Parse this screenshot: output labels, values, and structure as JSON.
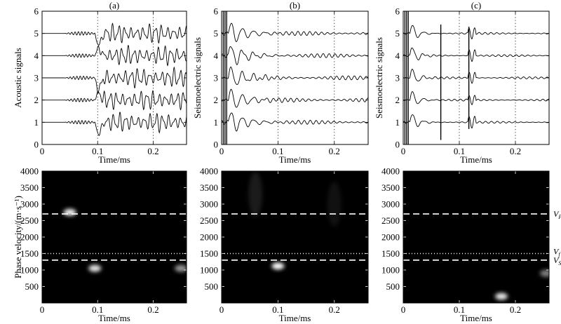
{
  "chart_data": [
    {
      "type": "line",
      "panel": "(a)",
      "ylabel": "Acoustic signals",
      "xlabel": "Time/ms",
      "xlim": [
        0,
        0.26
      ],
      "ylim": [
        0,
        6
      ],
      "xticks": [
        0,
        0.1,
        0.2
      ],
      "yticks": [
        0,
        1,
        2,
        3,
        4,
        5,
        6
      ],
      "dotted_verticals": [
        0.1,
        0.2
      ],
      "trace_baselines": [
        1,
        2,
        3,
        4,
        5
      ],
      "trace_style": "weak arrival near 0.05 ms, strong oscillations from 0.1 ms to 0.25 ms"
    },
    {
      "type": "line",
      "panel": "(b)",
      "ylabel": "Seismoelectric signals",
      "xlabel": "Time/ms",
      "xlim": [
        0,
        0.26
      ],
      "ylim": [
        0,
        6
      ],
      "xticks": [
        0,
        0.1,
        0.2
      ],
      "yticks": [
        0,
        1,
        2,
        3,
        4,
        5,
        6
      ],
      "dotted_verticals": [
        0.1,
        0.2
      ],
      "trace_baselines": [
        1,
        2,
        3,
        4,
        5
      ],
      "trace_style": "large early transient near 0.01 to 0.03 ms, decaying oscillations afterwards"
    },
    {
      "type": "line",
      "panel": "(c)",
      "ylabel": "Seismoelectric signals",
      "xlabel": "Time/ms",
      "xlim": [
        0,
        0.26
      ],
      "ylim": [
        0,
        6
      ],
      "xticks": [
        0,
        0.1,
        0.2
      ],
      "yticks": [
        0,
        1,
        2,
        3,
        4,
        5,
        6
      ],
      "dotted_verticals": [
        0.1,
        0.2
      ],
      "trace_baselines": [
        1,
        2,
        3,
        4,
        5
      ],
      "marker_lines": [
        {
          "x": 0.067,
          "y_range": [
            0.2,
            5.4
          ]
        },
        {
          "x": 0.117,
          "y_range": [
            0.7,
            5.3
          ]
        }
      ],
      "trace_style": "large early transient near 0.01 to 0.03 ms, small oscillations afterwards"
    },
    {
      "type": "heatmap",
      "ylabel": "Phase velocity/(m·s⁻¹)",
      "xlabel": "Time/ms",
      "xlim": [
        0,
        0.26
      ],
      "ylim": [
        0,
        4000
      ],
      "xticks": [
        0,
        0.1,
        0.2
      ],
      "yticks": [
        500,
        1000,
        1500,
        2000,
        2500,
        3000,
        3500,
        4000
      ],
      "reference_lines": [
        {
          "velocity": 2700,
          "style": "dashed"
        },
        {
          "velocity": 1500,
          "style": "dotted"
        },
        {
          "velocity": 1300,
          "style": "dashed"
        }
      ],
      "hotspots": [
        {
          "t": 0.05,
          "v": 2750,
          "intensity": 0.95
        },
        {
          "t": 0.095,
          "v": 1050,
          "intensity": 0.9
        },
        {
          "t": 0.25,
          "v": 1050,
          "intensity": 0.6
        }
      ]
    },
    {
      "type": "heatmap",
      "ylabel": "",
      "xlabel": "Time/ms",
      "xlim": [
        0,
        0.26
      ],
      "ylim": [
        0,
        4000
      ],
      "xticks": [
        0,
        0.1,
        0.2
      ],
      "yticks": [
        500,
        1000,
        1500,
        2000,
        2500,
        3000,
        3500,
        4000
      ],
      "reference_lines": [
        {
          "velocity": 2700,
          "style": "dashed"
        },
        {
          "velocity": 1500,
          "style": "dotted"
        },
        {
          "velocity": 1300,
          "style": "dashed"
        }
      ],
      "hotspots": [
        {
          "t": 0.1,
          "v": 1120,
          "intensity": 1.0
        },
        {
          "t": 0.06,
          "v": 3300,
          "intensity": 0.3
        },
        {
          "t": 0.2,
          "v": 3000,
          "intensity": 0.2
        }
      ]
    },
    {
      "type": "heatmap",
      "ylabel": "",
      "xlabel": "Time/ms",
      "xlim": [
        0,
        0.26
      ],
      "ylim": [
        0,
        4000
      ],
      "xticks": [
        0,
        0.1,
        0.2
      ],
      "yticks": [
        500,
        1000,
        1500,
        2000,
        2500,
        3000,
        3500,
        4000
      ],
      "reference_lines": [
        {
          "velocity": 2700,
          "style": "dashed",
          "label": "V",
          "sub": "P"
        },
        {
          "velocity": 1500,
          "style": "dotted",
          "label": "V",
          "sub": "f"
        },
        {
          "velocity": 1300,
          "style": "dashed",
          "label": "V",
          "sub": "S"
        }
      ],
      "hotspots": [
        {
          "t": 0.175,
          "v": 200,
          "intensity": 0.9
        },
        {
          "t": 0.255,
          "v": 900,
          "intensity": 0.5
        }
      ]
    }
  ]
}
